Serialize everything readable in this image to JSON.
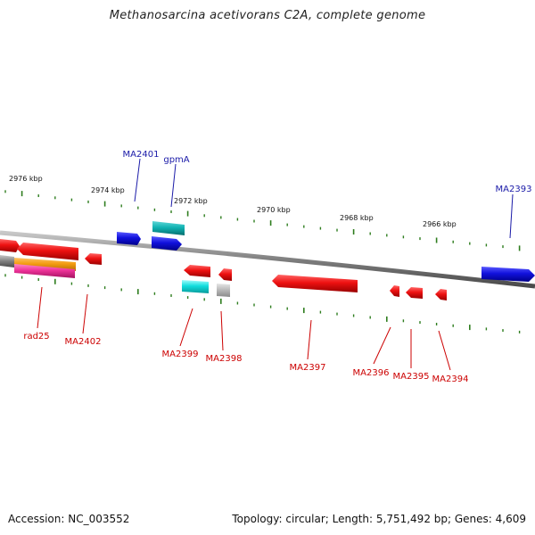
{
  "title": "Methanosarcina acetivorans C2A, complete genome",
  "footer": {
    "accession": "Accession: NC_003552",
    "topology": "Topology: circular; Length: 5,751,492 bp; Genes: 4,609"
  },
  "colors": {
    "backbone": "#7f7f7f",
    "tick": "#2e7d1e",
    "label_forward": "#1a1aa8",
    "label_reverse": "#cc0000",
    "gene_red": "#ee1111",
    "gene_blue": "#1111dd",
    "gene_cyan": "#11dddd",
    "gene_teal": "#11b3b3",
    "gene_gray": "#bbbbbb",
    "gene_orange": "#f39c12",
    "gene_magenta": "#ee3399"
  },
  "tick_labels": [
    "2976 kbp",
    "2974 kbp",
    "2972 kbp",
    "2970 kbp",
    "2968 kbp",
    "2966 kbp"
  ],
  "gene_labels": {
    "forward": [
      "MA2401",
      "gpmA",
      "MA2393"
    ],
    "reverse": [
      "rad25",
      "MA2402",
      "MA2399",
      "MA2398",
      "MA2397",
      "MA2396",
      "MA2395",
      "MA2394"
    ]
  }
}
